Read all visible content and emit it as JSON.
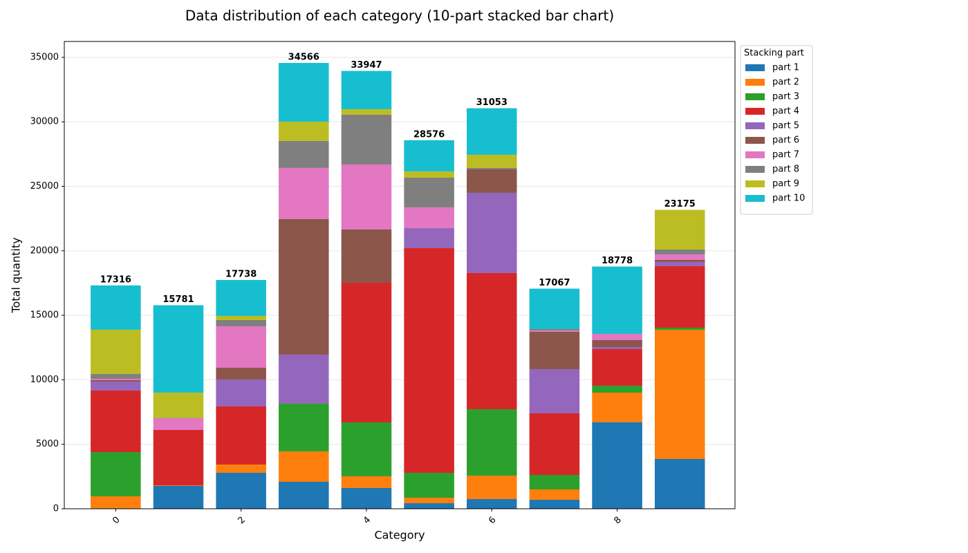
{
  "chart_data": {
    "type": "stacked_bar",
    "title": "Data distribution of each category (10-part stacked bar chart)",
    "x_label": "Category",
    "y_label": "Total quantity",
    "x": [
      0,
      1,
      2,
      3,
      4,
      5,
      6,
      7,
      8,
      9
    ],
    "xlim": [
      -0.82,
      9.88
    ],
    "xticks": [
      0,
      2,
      4,
      6,
      8
    ],
    "ylim": [
      0,
      36230
    ],
    "yticks": [
      0,
      5000,
      10000,
      15000,
      20000,
      25000,
      30000,
      35000
    ],
    "grid": true,
    "legend_title": "Stacking part",
    "legend_position": "outside-right",
    "totals": [
      17316,
      15781,
      17738,
      34566,
      33947,
      28576,
      31053,
      17067,
      18778,
      23175
    ],
    "series": [
      {
        "name": "part 1",
        "color": "#1f77b4",
        "values": [
          0,
          1769,
          2787,
          2090,
          1608,
          429,
          750,
          697,
          6700,
          3859
        ]
      },
      {
        "name": "part 2",
        "color": "#ff7f0e",
        "values": [
          965,
          30,
          643,
          2359,
          911,
          429,
          1823,
          804,
          2305,
          10023
        ]
      },
      {
        "name": "part 3",
        "color": "#2ca02c",
        "values": [
          3430,
          10,
          0,
          3698,
          4181,
          1929,
          5145,
          1125,
          536,
          161
        ]
      },
      {
        "name": "part 4",
        "color": "#d62728",
        "values": [
          4771,
          4301,
          4503,
          0,
          10827,
          17420,
          10560,
          4771,
          2841,
          4771
        ]
      },
      {
        "name": "part 5",
        "color": "#9467bd",
        "values": [
          696,
          0,
          2090,
          3806,
          0,
          1555,
          6217,
          3430,
          160,
          322
        ]
      },
      {
        "name": "part 6",
        "color": "#8c564b",
        "values": [
          108,
          0,
          911,
          10505,
          4127,
          0,
          1823,
          2895,
          536,
          161
        ]
      },
      {
        "name": "part 7",
        "color": "#e377c2",
        "values": [
          107,
          912,
          3216,
          3967,
          5039,
          1608,
          0,
          107,
          483,
          428
        ]
      },
      {
        "name": "part 8",
        "color": "#7f7f7f",
        "values": [
          375,
          20,
          483,
          2090,
          3859,
          2304,
          107,
          107,
          0,
          375
        ]
      },
      {
        "name": "part 9",
        "color": "#bcbd22",
        "values": [
          3430,
          1963,
          321,
          1501,
          429,
          483,
          1018,
          0,
          0,
          3075
        ]
      },
      {
        "name": "part 10",
        "color": "#17becf",
        "values": [
          3434,
          6776,
          2784,
          4550,
          2966,
          2419,
          3610,
          3131,
          5217,
          0
        ]
      }
    ]
  }
}
